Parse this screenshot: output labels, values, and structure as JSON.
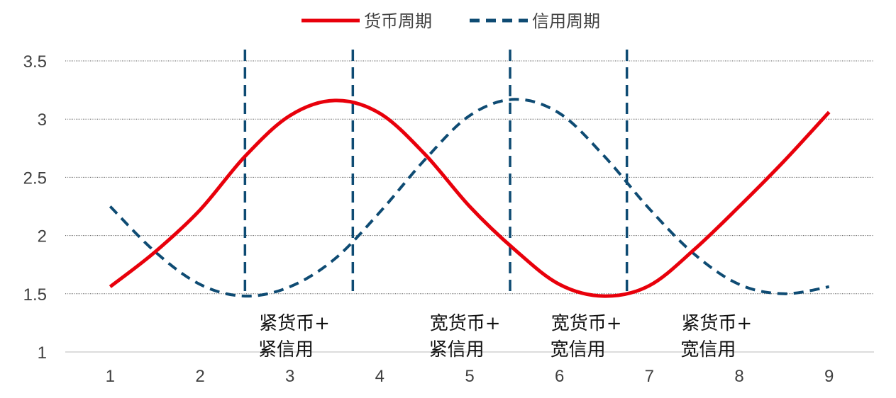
{
  "chart_data": {
    "type": "line",
    "title": "",
    "xlabel": "",
    "ylabel": "",
    "x": [
      1,
      2,
      3,
      4,
      5,
      6,
      7,
      8,
      9
    ],
    "xlim": [
      0.5,
      9.5
    ],
    "ylim": [
      1,
      3.5
    ],
    "yticks": [
      "1",
      "1.5",
      "2",
      "2.5",
      "3",
      "3.5"
    ],
    "xticks": [
      "1",
      "2",
      "3",
      "4",
      "5",
      "6",
      "7",
      "8",
      "9"
    ],
    "grid": "horizontal dotted",
    "legend_position": "top-center",
    "series": [
      {
        "name": "货币周期",
        "color": "#e8000b",
        "style": "solid",
        "points": [
          [
            1,
            1.56
          ],
          [
            1.5,
            1.86
          ],
          [
            2,
            2.22
          ],
          [
            2.5,
            2.68
          ],
          [
            3,
            3.03
          ],
          [
            3.5,
            3.16
          ],
          [
            4,
            3.05
          ],
          [
            4.5,
            2.7
          ],
          [
            5,
            2.25
          ],
          [
            5.5,
            1.88
          ],
          [
            6,
            1.58
          ],
          [
            6.5,
            1.48
          ],
          [
            7,
            1.57
          ],
          [
            7.5,
            1.88
          ],
          [
            8,
            2.25
          ],
          [
            8.5,
            2.64
          ],
          [
            9,
            3.06
          ]
        ]
      },
      {
        "name": "信用周期",
        "color": "#0e4b73",
        "style": "dashed",
        "points": [
          [
            1,
            2.25
          ],
          [
            1.5,
            1.86
          ],
          [
            2,
            1.58
          ],
          [
            2.5,
            1.48
          ],
          [
            3,
            1.56
          ],
          [
            3.5,
            1.8
          ],
          [
            4,
            2.2
          ],
          [
            4.5,
            2.65
          ],
          [
            5,
            3.03
          ],
          [
            5.5,
            3.17
          ],
          [
            6,
            3.05
          ],
          [
            6.5,
            2.68
          ],
          [
            7,
            2.23
          ],
          [
            7.5,
            1.84
          ],
          [
            8,
            1.58
          ],
          [
            8.5,
            1.5
          ],
          [
            9,
            1.56
          ]
        ]
      }
    ],
    "dividers": [
      2.5,
      3.7,
      5.45,
      6.75
    ],
    "divider_color": "#0e4b73",
    "phases": [
      {
        "x": 3.05,
        "line1": "紧货币+",
        "line2": "紧信用"
      },
      {
        "x": 4.95,
        "line1": "宽货币+",
        "line2": "紧信用"
      },
      {
        "x": 6.3,
        "line1": "宽货币+",
        "line2": "宽信用"
      },
      {
        "x": 7.75,
        "line1": "紧货币+",
        "line2": "宽信用"
      }
    ]
  }
}
